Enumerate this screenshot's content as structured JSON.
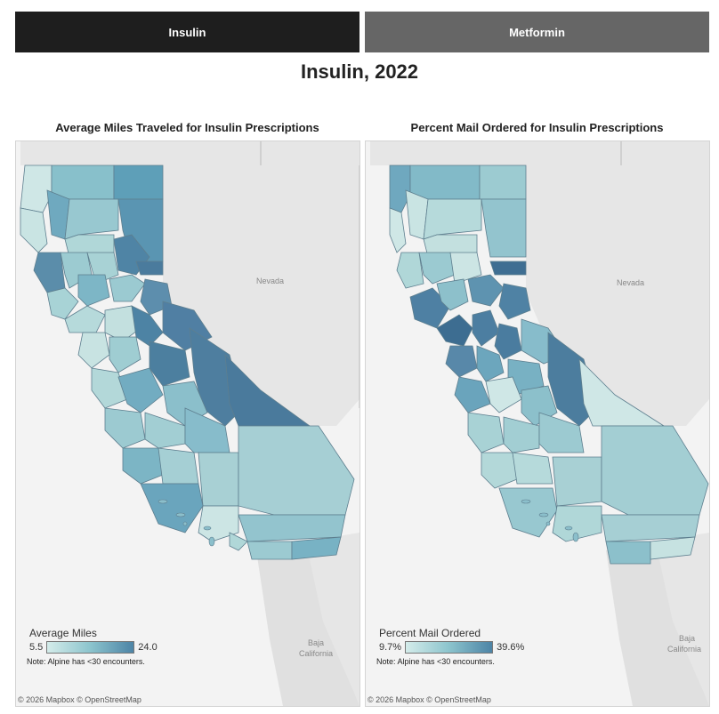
{
  "tabs": [
    {
      "label": "Insulin"
    },
    {
      "label": "Metformin"
    }
  ],
  "page_title": "Insulin, 2022",
  "maps": [
    {
      "title": "Average Miles Traveled for Insulin Prescriptions",
      "legend_title": "Average Miles",
      "legend_min": "5.5",
      "legend_max": "24.0",
      "note": "Note: Alpine has <30 encounters.",
      "place_labels": {
        "nevada": "Nevada",
        "baja_line1": "Baja",
        "baja_line2": "California"
      },
      "attribution": "© 2026 Mapbox  © OpenStreetMap"
    },
    {
      "title": "Percent Mail Ordered for Insulin Prescriptions",
      "legend_title": "Percent Mail Ordered",
      "legend_min": "9.7%",
      "legend_max": "39.6%",
      "note": "Note: Alpine has <30 encounters.",
      "place_labels": {
        "nevada": "Nevada",
        "baja_line1": "Baja",
        "baja_line2": "California"
      },
      "attribution": "© 2026 Mapbox  © OpenStreetMap"
    }
  ],
  "colors": {
    "scale_low": "#d4ecea",
    "scale_mid": "#8cc4cd",
    "scale_high": "#4d84a6",
    "tab_active": "#1e1e1e",
    "tab_inactive": "#666666",
    "land": "#e8e8e8",
    "ocean": "#f4f4f4"
  }
}
